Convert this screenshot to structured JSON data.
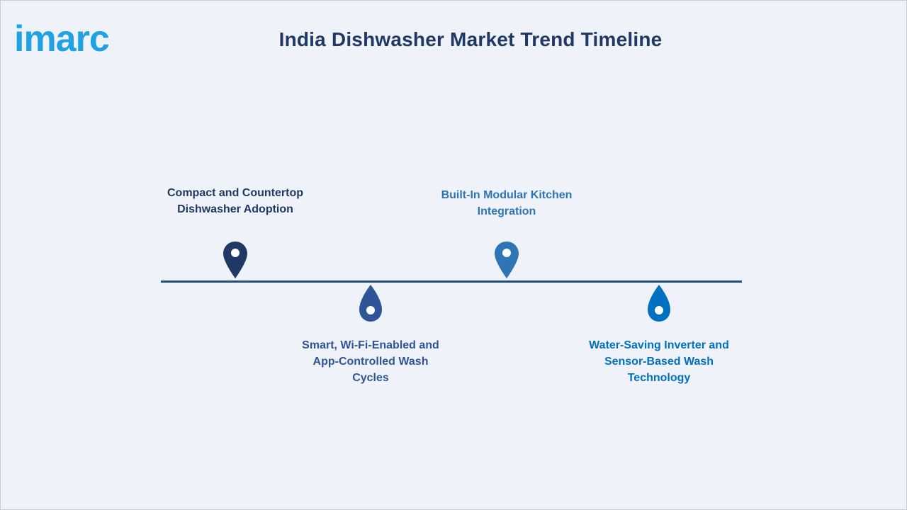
{
  "logo": {
    "text": "imarc",
    "color": "#1fa2e3"
  },
  "title": "India Dishwasher Market Trend Timeline",
  "timeline": {
    "line_color": "#1f4e79",
    "milestones": [
      {
        "label_lines": [
          "Compact and Countertop",
          "Dishwasher Adoption"
        ],
        "position": "above",
        "color": "#1f3864",
        "icon": "map-pin-icon"
      },
      {
        "label_lines": [
          "Smart, Wi-Fi-Enabled and",
          "App-Controlled Wash",
          "Cycles"
        ],
        "position": "below",
        "color": "#2f5597",
        "icon": "water-drop-icon"
      },
      {
        "label_lines": [
          "Built-In Modular Kitchen",
          "Integration"
        ],
        "position": "above",
        "color": "#2e75b6",
        "icon": "map-pin-icon"
      },
      {
        "label_lines": [
          "Water-Saving Inverter and",
          "Sensor-Based Wash",
          "Technology"
        ],
        "position": "below",
        "color": "#0070c0",
        "icon": "water-drop-icon"
      }
    ]
  }
}
